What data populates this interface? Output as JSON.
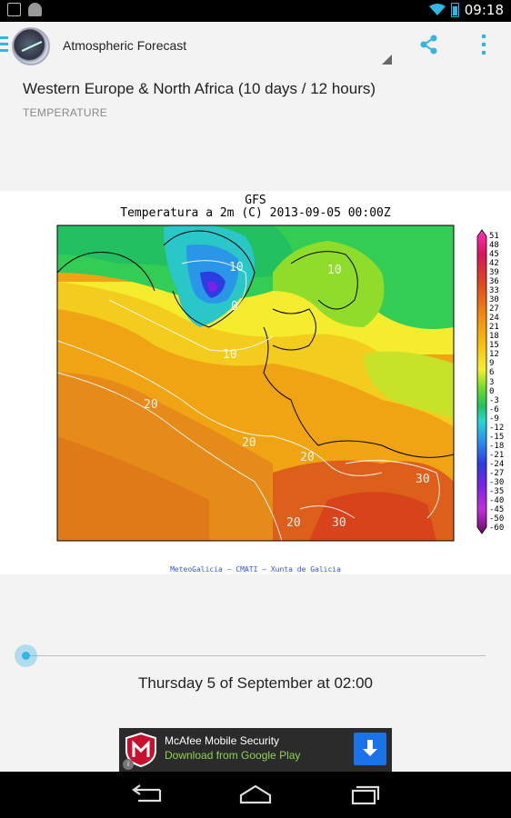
{
  "status_bar": {
    "time": "09:18",
    "battery_color": "#33b5e5"
  },
  "action_bar": {
    "title": "Atmospheric Forecast",
    "accent": "#33b5e5",
    "icons": [
      "drawer-icon",
      "app-logo-icon",
      "spinner-indicator",
      "share-icon",
      "overflow-menu-icon"
    ]
  },
  "content": {
    "region": "Western Europe & North Africa (10 days / 12 hours)",
    "variable": "TEMPERATURE"
  },
  "map": {
    "model": "GFS",
    "caption": "Temperatura a 2m (C) 2013-09-05 00:00Z",
    "contour_labels": [
      "10",
      "0",
      "10",
      "20",
      "20",
      "30",
      "20",
      "30",
      "20",
      "10"
    ],
    "scale_values": [
      "51",
      "48",
      "45",
      "42",
      "39",
      "36",
      "33",
      "30",
      "27",
      "24",
      "21",
      "18",
      "15",
      "12",
      "9",
      "6",
      "3",
      "0",
      "-3",
      "-6",
      "-9",
      "-12",
      "-15",
      "-18",
      "-21",
      "-24",
      "-27",
      "-30",
      "-35",
      "-40",
      "-45",
      "-50",
      "-60"
    ],
    "credit": "MeteoGalicia — CMATI — Xunta de Galicia"
  },
  "timeline": {
    "position_fraction": 0.0,
    "label": "Thursday 5 of September at 02:00"
  },
  "ad": {
    "title": "McAfee Mobile Security",
    "subtitle": "Download from Google Play",
    "info_glyph": "i"
  },
  "nav_bar": {
    "buttons": [
      "back-icon",
      "home-icon",
      "recents-icon"
    ]
  }
}
